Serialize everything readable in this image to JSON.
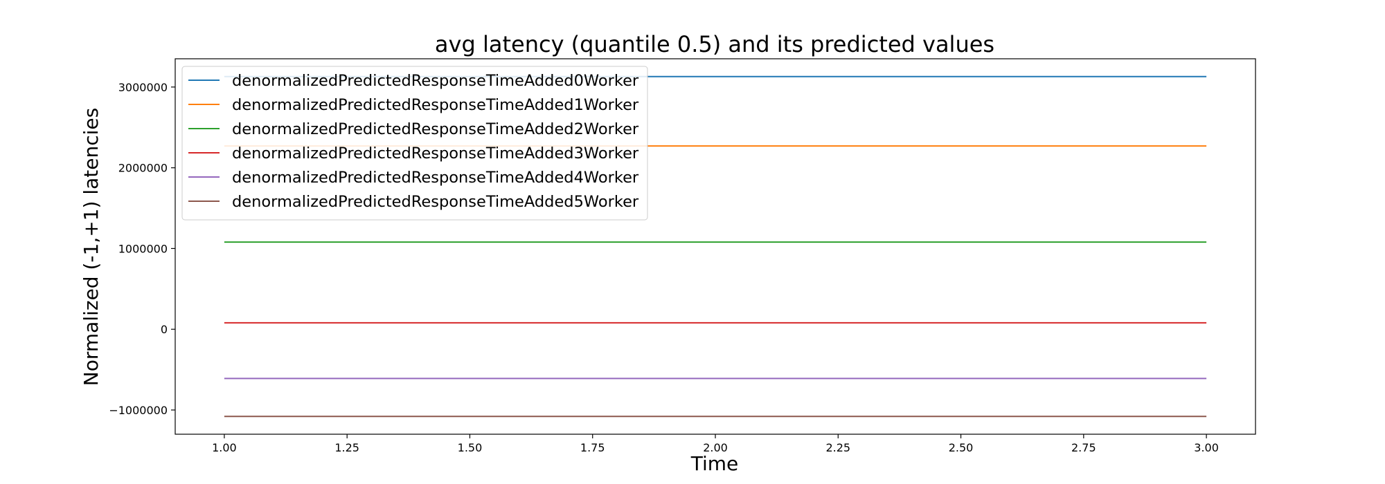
{
  "chart_data": {
    "type": "line",
    "title": "avg latency (quantile 0.5) and its predicted values",
    "xlabel": "Time",
    "ylabel": "Normalized (-1,+1) latencies",
    "xlim": [
      0.9,
      3.1
    ],
    "ylim": [
      -1300000,
      3350000
    ],
    "xticks": [
      1.0,
      1.25,
      1.5,
      1.75,
      2.0,
      2.25,
      2.5,
      2.75,
      3.0
    ],
    "xtick_labels": [
      "1.00",
      "1.25",
      "1.50",
      "1.75",
      "2.00",
      "2.25",
      "2.50",
      "2.75",
      "3.00"
    ],
    "yticks": [
      -1000000,
      0,
      1000000,
      2000000,
      3000000
    ],
    "ytick_labels": [
      "−1000000",
      "0",
      "1000000",
      "2000000",
      "3000000"
    ],
    "legend_position": "top-left",
    "grid": false,
    "series": [
      {
        "name": "denormalizedPredictedResponseTimeAdded0Worker",
        "color": "#1f77b4",
        "x": [
          1,
          2,
          3
        ],
        "y": [
          3130000,
          3130000,
          3130000
        ]
      },
      {
        "name": "denormalizedPredictedResponseTimeAdded1Worker",
        "color": "#ff7f0e",
        "x": [
          1,
          2,
          3
        ],
        "y": [
          2270000,
          2270000,
          2270000
        ]
      },
      {
        "name": "denormalizedPredictedResponseTimeAdded2Worker",
        "color": "#2ca02c",
        "x": [
          1,
          2,
          3
        ],
        "y": [
          1080000,
          1080000,
          1080000
        ]
      },
      {
        "name": "denormalizedPredictedResponseTimeAdded3Worker",
        "color": "#d62728",
        "x": [
          1,
          2,
          3
        ],
        "y": [
          80000,
          80000,
          80000
        ]
      },
      {
        "name": "denormalizedPredictedResponseTimeAdded4Worker",
        "color": "#9467bd",
        "x": [
          1,
          2,
          3
        ],
        "y": [
          -610000,
          -610000,
          -610000
        ]
      },
      {
        "name": "denormalizedPredictedResponseTimeAdded5Worker",
        "color": "#8c564b",
        "x": [
          1,
          2,
          3
        ],
        "y": [
          -1080000,
          -1080000,
          -1080000
        ]
      }
    ]
  }
}
